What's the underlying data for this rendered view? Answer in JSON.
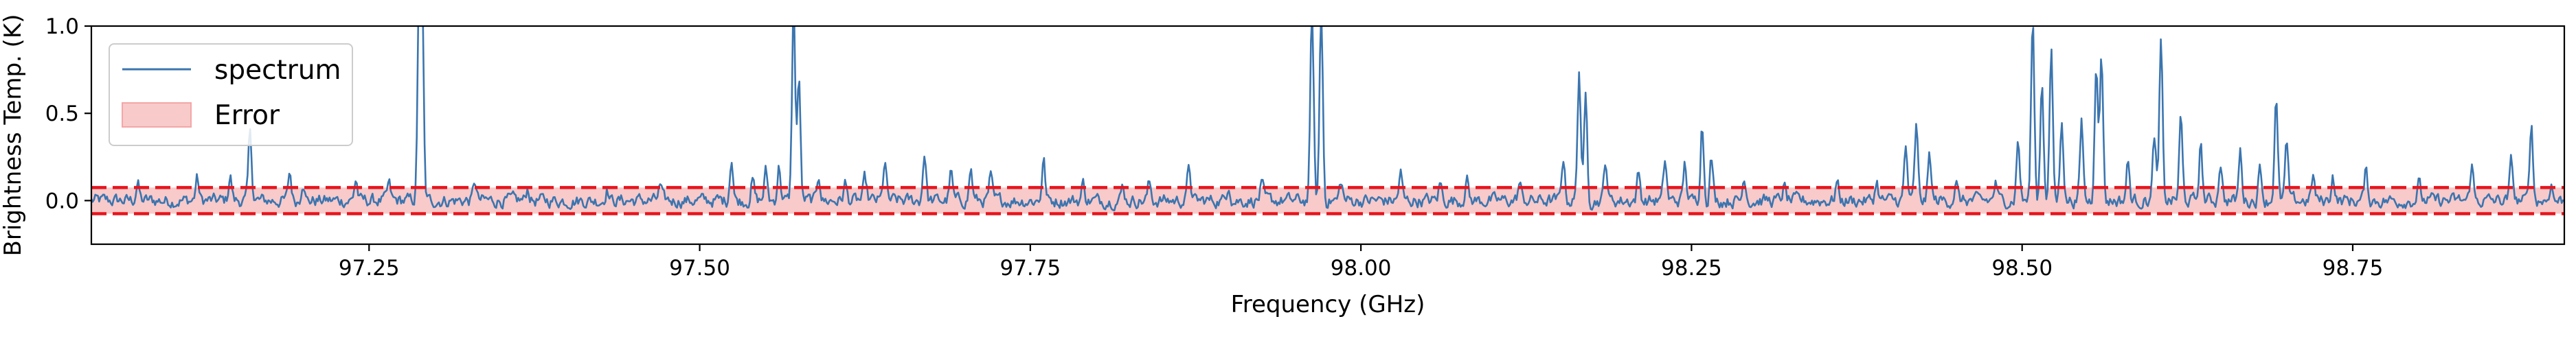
{
  "chart_data": {
    "type": "line",
    "xlabel": "Frequency (GHz)",
    "ylabel": "Brightness Temp. (K)",
    "xlim": [
      97.04,
      98.91
    ],
    "ylim": [
      -0.25,
      1.0
    ],
    "x_ticks": [
      97.25,
      97.5,
      97.75,
      98.0,
      98.25,
      98.5,
      98.75
    ],
    "x_tick_labels": [
      "97.25",
      "97.50",
      "97.75",
      "98.00",
      "98.25",
      "98.50",
      "98.75"
    ],
    "y_ticks": [
      0.0,
      0.5,
      1.0
    ],
    "y_tick_labels": [
      "0.0",
      "0.5",
      "1.0"
    ],
    "grid": false,
    "legend": {
      "placement": "upper-left",
      "entries": [
        "spectrum",
        "Error"
      ]
    },
    "error_band": {
      "name": "Error",
      "lower": -0.075,
      "upper": 0.075,
      "color": "#f4a6a6",
      "line_color": "#e8141c"
    },
    "noise_level": 0.035,
    "series": [
      {
        "name": "spectrum",
        "color": "#3b75af",
        "peaks": [
          [
            97.075,
            0.1
          ],
          [
            97.12,
            0.13
          ],
          [
            97.145,
            0.14
          ],
          [
            97.16,
            0.4
          ],
          [
            97.19,
            0.16
          ],
          [
            97.2,
            0.12
          ],
          [
            97.24,
            0.12
          ],
          [
            97.265,
            0.09
          ],
          [
            97.288,
            1.25
          ],
          [
            97.29,
            1.1
          ],
          [
            97.33,
            0.11
          ],
          [
            97.37,
            0.07
          ],
          [
            97.43,
            0.07
          ],
          [
            97.47,
            0.08
          ],
          [
            97.524,
            0.25
          ],
          [
            97.54,
            0.12
          ],
          [
            97.55,
            0.17
          ],
          [
            97.56,
            0.2
          ],
          [
            97.571,
            1.1
          ],
          [
            97.575,
            0.7
          ],
          [
            97.59,
            0.15
          ],
          [
            97.61,
            0.1
          ],
          [
            97.625,
            0.12
          ],
          [
            97.64,
            0.22
          ],
          [
            97.67,
            0.28
          ],
          [
            97.69,
            0.16
          ],
          [
            97.705,
            0.18
          ],
          [
            97.72,
            0.13
          ],
          [
            97.76,
            0.24
          ],
          [
            97.79,
            0.1
          ],
          [
            97.82,
            0.08
          ],
          [
            97.84,
            0.1
          ],
          [
            97.87,
            0.2
          ],
          [
            97.9,
            0.1
          ],
          [
            97.925,
            0.09
          ],
          [
            97.963,
            1.1
          ],
          [
            97.97,
            1.1
          ],
          [
            97.985,
            0.11
          ],
          [
            98.03,
            0.16
          ],
          [
            98.06,
            0.1
          ],
          [
            98.08,
            0.13
          ],
          [
            98.12,
            0.1
          ],
          [
            98.153,
            0.25
          ],
          [
            98.165,
            0.75
          ],
          [
            98.17,
            0.6
          ],
          [
            98.185,
            0.23
          ],
          [
            98.21,
            0.16
          ],
          [
            98.23,
            0.23
          ],
          [
            98.245,
            0.21
          ],
          [
            98.258,
            0.45
          ],
          [
            98.265,
            0.25
          ],
          [
            98.29,
            0.14
          ],
          [
            98.32,
            0.08
          ],
          [
            98.36,
            0.11
          ],
          [
            98.39,
            0.11
          ],
          [
            98.412,
            0.3
          ],
          [
            98.42,
            0.42
          ],
          [
            98.43,
            0.26
          ],
          [
            98.45,
            0.1
          ],
          [
            98.48,
            0.1
          ],
          [
            98.497,
            0.35
          ],
          [
            98.508,
            1.05
          ],
          [
            98.515,
            0.7
          ],
          [
            98.522,
            0.85
          ],
          [
            98.53,
            0.48
          ],
          [
            98.545,
            0.45
          ],
          [
            98.556,
            0.8
          ],
          [
            98.56,
            0.85
          ],
          [
            98.58,
            0.22
          ],
          [
            98.6,
            0.37
          ],
          [
            98.605,
            0.9
          ],
          [
            98.62,
            0.48
          ],
          [
            98.635,
            0.32
          ],
          [
            98.65,
            0.23
          ],
          [
            98.665,
            0.28
          ],
          [
            98.68,
            0.2
          ],
          [
            98.692,
            0.58
          ],
          [
            98.7,
            0.32
          ],
          [
            98.72,
            0.14
          ],
          [
            98.735,
            0.15
          ],
          [
            98.76,
            0.17
          ],
          [
            98.8,
            0.1
          ],
          [
            98.84,
            0.21
          ],
          [
            98.87,
            0.23
          ],
          [
            98.885,
            0.45
          ],
          [
            98.9,
            0.1
          ]
        ]
      }
    ]
  }
}
